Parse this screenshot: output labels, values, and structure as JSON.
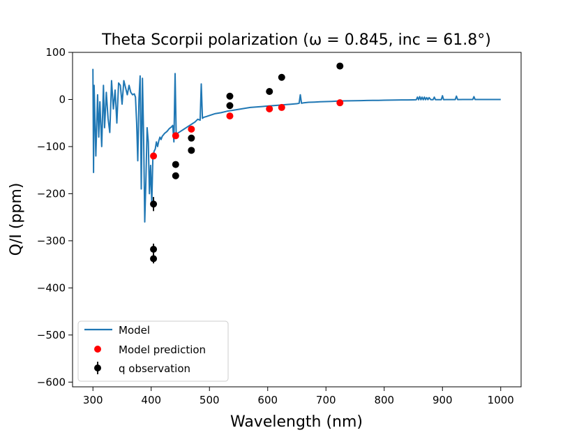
{
  "chart_data": {
    "type": "line",
    "title": "Theta Scorpii polarization (ω = 0.845, inc = 61.8°)",
    "xlabel": "Wavelength (nm)",
    "ylabel": "Q/I (ppm)",
    "xlim": [
      265,
      1035
    ],
    "ylim": [
      -610,
      100
    ],
    "xticks": [
      300,
      400,
      500,
      600,
      700,
      800,
      900,
      1000
    ],
    "xtick_labels": [
      "300",
      "400",
      "500",
      "600",
      "700",
      "800",
      "900",
      "1000"
    ],
    "yticks": [
      100,
      0,
      -100,
      -200,
      -300,
      -400,
      -500,
      -600
    ],
    "ytick_labels": [
      "100",
      "0",
      "−100",
      "−200",
      "−300",
      "−400",
      "−500",
      "−600"
    ],
    "legend": {
      "location": "lower-left",
      "entries": [
        "Model",
        "Model prediction",
        "q observation"
      ]
    },
    "series": [
      {
        "name": "Model",
        "kind": "line",
        "color": "#1f77b4",
        "x": [
          300,
          301,
          302,
          305,
          308,
          310,
          312,
          315,
          318,
          320,
          323,
          326,
          329,
          332,
          335,
          338,
          341,
          344,
          347,
          350,
          353,
          356,
          359,
          362,
          365,
          368,
          371,
          373,
          375,
          377,
          379,
          381,
          383,
          385,
          387,
          389,
          391,
          393,
          395,
          397,
          399,
          401,
          403,
          405,
          407,
          409,
          411,
          413,
          415,
          417,
          419,
          421,
          423,
          425,
          427,
          429,
          431,
          433,
          435,
          437,
          439,
          441,
          443,
          445,
          450,
          455,
          460,
          465,
          470,
          475,
          480,
          484,
          486,
          488,
          490,
          495,
          500,
          510,
          520,
          530,
          540,
          550,
          560,
          570,
          580,
          590,
          600,
          610,
          620,
          630,
          640,
          650,
          654,
          656,
          658,
          662,
          670,
          680,
          690,
          700,
          710,
          720,
          730,
          740,
          750,
          760,
          770,
          780,
          790,
          800,
          810,
          820,
          830,
          840,
          850,
          855,
          857,
          859,
          861,
          863,
          865,
          867,
          869,
          871,
          873,
          875,
          877,
          880,
          884,
          886,
          888,
          892,
          898,
          900,
          902,
          906,
          915,
          922,
          924,
          926,
          935,
          945,
          952,
          954,
          956,
          965,
          975,
          985,
          995,
          1000
        ],
        "y": [
          65,
          -155,
          30,
          -120,
          10,
          -80,
          -5,
          -100,
          30,
          -60,
          15,
          -40,
          -70,
          40,
          -20,
          20,
          -50,
          35,
          30,
          -10,
          40,
          25,
          10,
          30,
          15,
          10,
          12,
          5,
          -50,
          -130,
          0,
          50,
          -190,
          45,
          -80,
          -260,
          -170,
          -60,
          -90,
          -200,
          -140,
          -220,
          -120,
          -110,
          -105,
          -90,
          -100,
          -88,
          -80,
          -85,
          -78,
          -75,
          -72,
          -70,
          -68,
          -65,
          -62,
          -60,
          -58,
          -55,
          -90,
          55,
          -75,
          -72,
          -68,
          -64,
          -60,
          -56,
          -52,
          -48,
          -42,
          -44,
          33,
          -40,
          -38,
          -36,
          -34,
          -30,
          -28,
          -25,
          -23,
          -21,
          -19,
          -17,
          -16,
          -15,
          -14,
          -13,
          -12,
          -11,
          -10,
          -9,
          -8,
          10,
          -8,
          -7,
          -6,
          -5.5,
          -5,
          -4.5,
          -4,
          -3.5,
          -3,
          -2.8,
          -2.6,
          -2.4,
          -2.2,
          -2,
          -1.8,
          -1.6,
          -1.4,
          -1.2,
          -1,
          -0.9,
          -0.8,
          -0.7,
          5,
          -0.7,
          6,
          -0.6,
          5,
          -0.6,
          5,
          -0.5,
          4,
          -0.5,
          4,
          -0.4,
          -0.4,
          5,
          -0.4,
          -0.3,
          -0.3,
          8,
          -0.3,
          -0.2,
          -0.2,
          -0.2,
          7,
          -0.2,
          -0.1,
          -0.1,
          -0.1,
          6,
          -0.1,
          0,
          0,
          0,
          0,
          0
        ]
      },
      {
        "name": "Model prediction",
        "kind": "scatter",
        "color": "#ff0000",
        "x": [
          404,
          442,
          469,
          535,
          603,
          624,
          724
        ],
        "y": [
          -120,
          -77,
          -63,
          -35,
          -20,
          -17,
          -7
        ]
      },
      {
        "name": "q observation",
        "kind": "errorbar",
        "color": "#000000",
        "x": [
          404,
          404,
          404,
          442,
          442,
          469,
          469,
          535,
          535,
          603,
          624,
          724
        ],
        "y": [
          -222,
          -318,
          -338,
          -138,
          -162,
          -82,
          -108,
          7,
          -13,
          17,
          47,
          71
        ],
        "yerr": [
          15,
          12,
          10,
          0,
          0,
          0,
          0,
          0,
          0,
          0,
          0,
          0
        ]
      }
    ]
  }
}
